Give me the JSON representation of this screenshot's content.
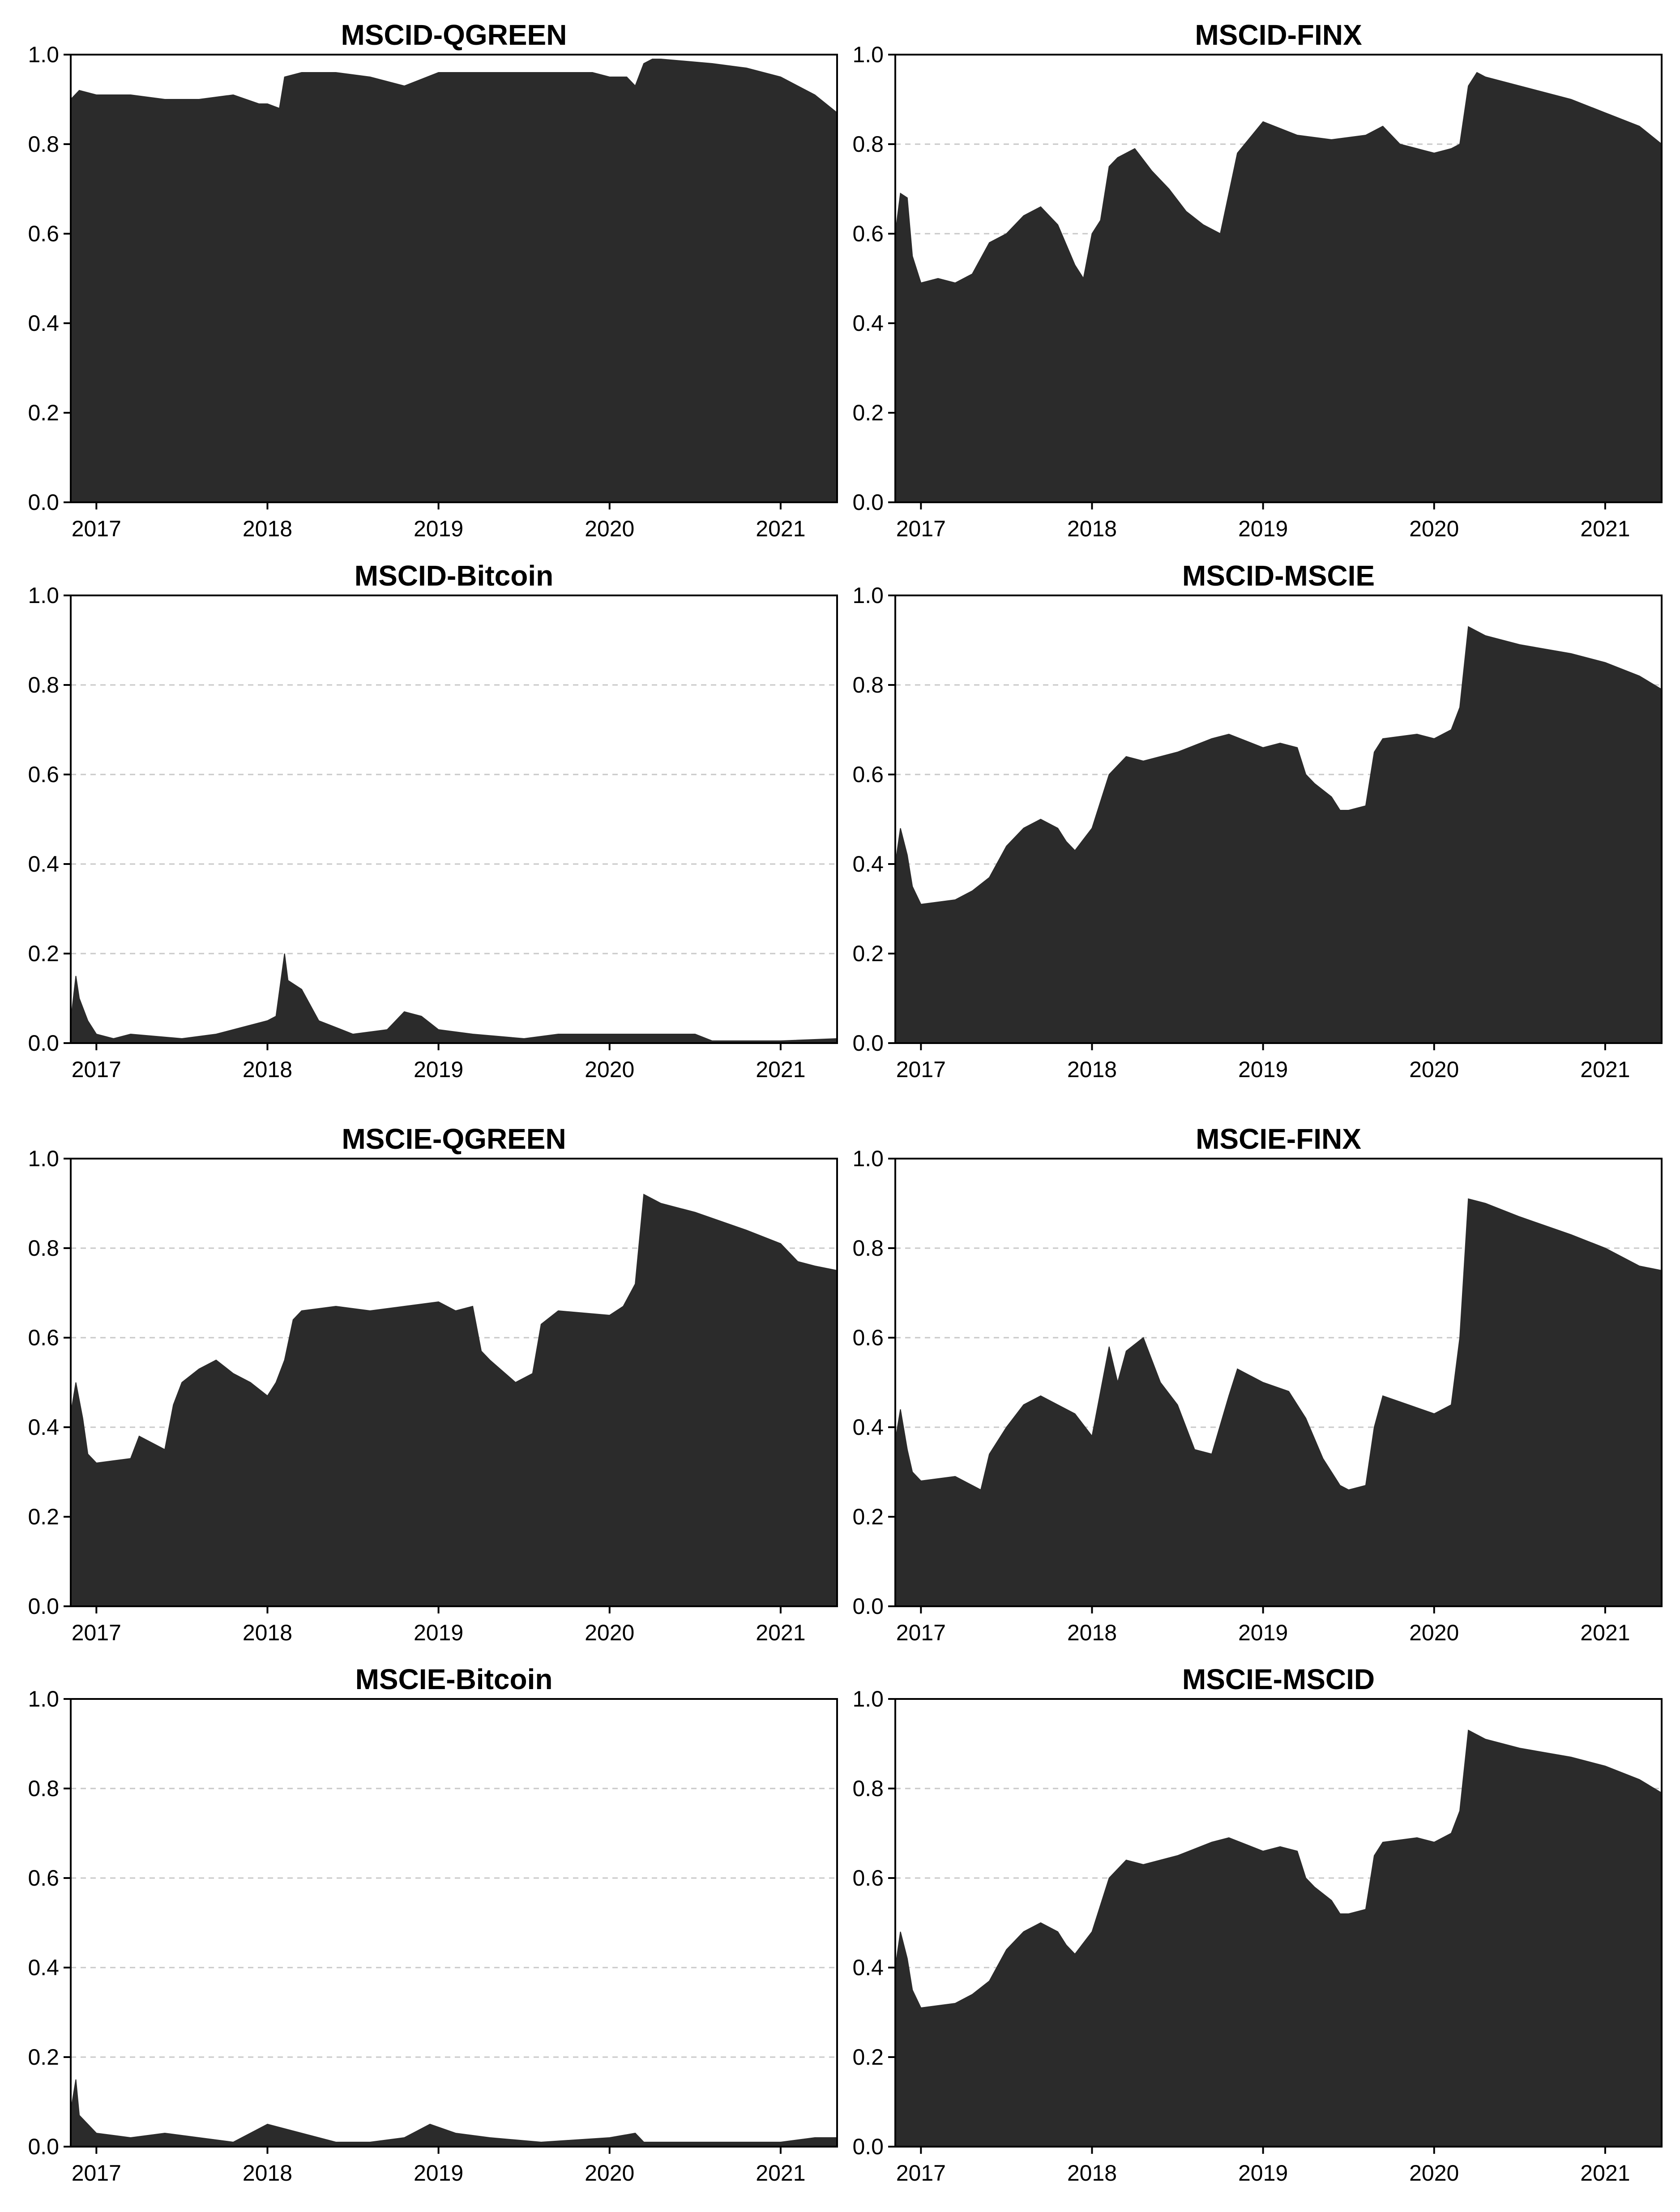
{
  "chart_data": [
    {
      "type": "area",
      "title": "MSCID-QGREEN",
      "ylim": [
        0,
        1
      ],
      "yticks": [
        "0.0",
        "0.2",
        "0.4",
        "0.6",
        "0.8",
        "1.0"
      ],
      "xlim": [
        2016.85,
        2021.33
      ],
      "xticks": [
        "2017",
        "2018",
        "2019",
        "2020",
        "2021"
      ],
      "grid": true,
      "color": "#2b2b2b",
      "x": [
        2016.85,
        2016.9,
        2017.0,
        2017.2,
        2017.4,
        2017.6,
        2017.8,
        2017.95,
        2018.0,
        2018.07,
        2018.1,
        2018.2,
        2018.4,
        2018.6,
        2018.8,
        2019.0,
        2019.3,
        2019.6,
        2019.9,
        2020.0,
        2020.1,
        2020.15,
        2020.2,
        2020.25,
        2020.3,
        2020.6,
        2020.8,
        2021.0,
        2021.2,
        2021.33
      ],
      "y": [
        0.9,
        0.92,
        0.91,
        0.91,
        0.9,
        0.9,
        0.91,
        0.89,
        0.89,
        0.88,
        0.95,
        0.96,
        0.96,
        0.95,
        0.93,
        0.96,
        0.96,
        0.96,
        0.96,
        0.95,
        0.95,
        0.93,
        0.98,
        0.99,
        0.99,
        0.98,
        0.97,
        0.95,
        0.91,
        0.87
      ]
    },
    {
      "type": "area",
      "title": "MSCID-FINX",
      "ylim": [
        0,
        1
      ],
      "yticks": [
        "0.0",
        "0.2",
        "0.4",
        "0.6",
        "0.8",
        "1.0"
      ],
      "xlim": [
        2016.85,
        2021.33
      ],
      "xticks": [
        "2017",
        "2018",
        "2019",
        "2020",
        "2021"
      ],
      "grid": true,
      "color": "#2b2b2b",
      "x": [
        2016.85,
        2016.88,
        2016.92,
        2016.95,
        2017.0,
        2017.1,
        2017.2,
        2017.3,
        2017.4,
        2017.5,
        2017.6,
        2017.7,
        2017.8,
        2017.9,
        2017.95,
        2018.0,
        2018.05,
        2018.1,
        2018.15,
        2018.25,
        2018.35,
        2018.45,
        2018.55,
        2018.65,
        2018.75,
        2018.85,
        2019.0,
        2019.2,
        2019.4,
        2019.6,
        2019.7,
        2019.8,
        2019.9,
        2020.0,
        2020.1,
        2020.15,
        2020.2,
        2020.25,
        2020.3,
        2020.5,
        2020.8,
        2021.0,
        2021.2,
        2021.33
      ],
      "y": [
        0.6,
        0.69,
        0.68,
        0.55,
        0.49,
        0.5,
        0.49,
        0.51,
        0.58,
        0.6,
        0.64,
        0.66,
        0.62,
        0.53,
        0.5,
        0.6,
        0.63,
        0.75,
        0.77,
        0.79,
        0.74,
        0.7,
        0.65,
        0.62,
        0.6,
        0.78,
        0.85,
        0.82,
        0.81,
        0.82,
        0.84,
        0.8,
        0.79,
        0.78,
        0.79,
        0.8,
        0.93,
        0.96,
        0.95,
        0.93,
        0.9,
        0.87,
        0.84,
        0.8
      ]
    },
    {
      "type": "area",
      "title": "MSCID-Bitcoin",
      "ylim": [
        0,
        1
      ],
      "yticks": [
        "0.0",
        "0.2",
        "0.4",
        "0.6",
        "0.8",
        "1.0"
      ],
      "xlim": [
        2016.85,
        2021.33
      ],
      "xticks": [
        "2017",
        "2018",
        "2019",
        "2020",
        "2021"
      ],
      "grid": true,
      "color": "#2b2b2b",
      "x": [
        2016.85,
        2016.88,
        2016.9,
        2016.95,
        2017.0,
        2017.1,
        2017.2,
        2017.5,
        2017.7,
        2017.9,
        2018.0,
        2018.05,
        2018.1,
        2018.12,
        2018.2,
        2018.3,
        2018.5,
        2018.7,
        2018.8,
        2018.9,
        2019.0,
        2019.2,
        2019.5,
        2019.7,
        2020.0,
        2020.3,
        2020.5,
        2020.6,
        2021.0,
        2021.33
      ],
      "y": [
        0.05,
        0.15,
        0.1,
        0.05,
        0.02,
        0.01,
        0.02,
        0.01,
        0.02,
        0.04,
        0.05,
        0.06,
        0.2,
        0.14,
        0.12,
        0.05,
        0.02,
        0.03,
        0.07,
        0.06,
        0.03,
        0.02,
        0.01,
        0.02,
        0.02,
        0.02,
        0.02,
        0.005,
        0.005,
        0.01
      ]
    },
    {
      "type": "area",
      "title": "MSCID-MSCIE",
      "ylim": [
        0,
        1
      ],
      "yticks": [
        "0.0",
        "0.2",
        "0.4",
        "0.6",
        "0.8",
        "1.0"
      ],
      "xlim": [
        2016.85,
        2021.33
      ],
      "xticks": [
        "2017",
        "2018",
        "2019",
        "2020",
        "2021"
      ],
      "grid": true,
      "color": "#2b2b2b",
      "x": [
        2016.85,
        2016.88,
        2016.92,
        2016.95,
        2017.0,
        2017.2,
        2017.3,
        2017.4,
        2017.5,
        2017.6,
        2017.7,
        2017.8,
        2017.85,
        2017.9,
        2018.0,
        2018.1,
        2018.2,
        2018.3,
        2018.5,
        2018.7,
        2018.8,
        2019.0,
        2019.1,
        2019.2,
        2019.25,
        2019.3,
        2019.4,
        2019.45,
        2019.5,
        2019.6,
        2019.65,
        2019.7,
        2019.9,
        2020.0,
        2020.1,
        2020.15,
        2020.2,
        2020.25,
        2020.3,
        2020.5,
        2020.8,
        2021.0,
        2021.2,
        2021.33
      ],
      "y": [
        0.4,
        0.48,
        0.42,
        0.35,
        0.31,
        0.32,
        0.34,
        0.37,
        0.44,
        0.48,
        0.5,
        0.48,
        0.45,
        0.43,
        0.48,
        0.6,
        0.64,
        0.63,
        0.65,
        0.68,
        0.69,
        0.66,
        0.67,
        0.66,
        0.6,
        0.58,
        0.55,
        0.52,
        0.52,
        0.53,
        0.65,
        0.68,
        0.69,
        0.68,
        0.7,
        0.75,
        0.93,
        0.92,
        0.91,
        0.89,
        0.87,
        0.85,
        0.82,
        0.79
      ]
    },
    {
      "type": "area",
      "title": "MSCIE-QGREEN",
      "ylim": [
        0,
        1
      ],
      "yticks": [
        "0.0",
        "0.2",
        "0.4",
        "0.6",
        "0.8",
        "1.0"
      ],
      "xlim": [
        2016.85,
        2021.33
      ],
      "xticks": [
        "2017",
        "2018",
        "2019",
        "2020",
        "2021"
      ],
      "grid": true,
      "color": "#2b2b2b",
      "x": [
        2016.85,
        2016.88,
        2016.92,
        2016.95,
        2017.0,
        2017.2,
        2017.25,
        2017.3,
        2017.4,
        2017.45,
        2017.5,
        2017.6,
        2017.7,
        2017.8,
        2017.9,
        2018.0,
        2018.05,
        2018.1,
        2018.15,
        2018.2,
        2018.4,
        2018.6,
        2018.8,
        2019.0,
        2019.1,
        2019.2,
        2019.25,
        2019.3,
        2019.45,
        2019.55,
        2019.6,
        2019.7,
        2020.0,
        2020.08,
        2020.15,
        2020.2,
        2020.3,
        2020.5,
        2020.8,
        2021.0,
        2021.1,
        2021.2,
        2021.33
      ],
      "y": [
        0.43,
        0.5,
        0.42,
        0.34,
        0.32,
        0.33,
        0.38,
        0.37,
        0.35,
        0.45,
        0.5,
        0.53,
        0.55,
        0.52,
        0.5,
        0.47,
        0.5,
        0.55,
        0.64,
        0.66,
        0.67,
        0.66,
        0.67,
        0.68,
        0.66,
        0.67,
        0.57,
        0.55,
        0.5,
        0.52,
        0.63,
        0.66,
        0.65,
        0.67,
        0.72,
        0.92,
        0.9,
        0.88,
        0.84,
        0.81,
        0.77,
        0.76,
        0.75
      ]
    },
    {
      "type": "area",
      "title": "MSCIE-FINX",
      "ylim": [
        0,
        1
      ],
      "yticks": [
        "0.0",
        "0.2",
        "0.4",
        "0.6",
        "0.8",
        "1.0"
      ],
      "xlim": [
        2016.85,
        2021.33
      ],
      "xticks": [
        "2017",
        "2018",
        "2019",
        "2020",
        "2021"
      ],
      "grid": true,
      "color": "#2b2b2b",
      "x": [
        2016.85,
        2016.88,
        2016.92,
        2016.95,
        2017.0,
        2017.2,
        2017.3,
        2017.35,
        2017.4,
        2017.5,
        2017.6,
        2017.7,
        2017.8,
        2017.9,
        2018.0,
        2018.05,
        2018.1,
        2018.15,
        2018.2,
        2018.3,
        2018.4,
        2018.5,
        2018.6,
        2018.7,
        2018.8,
        2018.85,
        2019.0,
        2019.15,
        2019.25,
        2019.35,
        2019.45,
        2019.5,
        2019.6,
        2019.65,
        2019.7,
        2019.85,
        2020.0,
        2020.1,
        2020.15,
        2020.2,
        2020.3,
        2020.5,
        2020.8,
        2021.0,
        2021.2,
        2021.33
      ],
      "y": [
        0.37,
        0.44,
        0.35,
        0.3,
        0.28,
        0.29,
        0.27,
        0.26,
        0.34,
        0.4,
        0.45,
        0.47,
        0.45,
        0.43,
        0.38,
        0.48,
        0.58,
        0.5,
        0.57,
        0.6,
        0.5,
        0.45,
        0.35,
        0.34,
        0.47,
        0.53,
        0.5,
        0.48,
        0.42,
        0.33,
        0.27,
        0.26,
        0.27,
        0.4,
        0.47,
        0.45,
        0.43,
        0.45,
        0.6,
        0.91,
        0.9,
        0.87,
        0.83,
        0.8,
        0.76,
        0.75
      ]
    },
    {
      "type": "area",
      "title": "MSCIE-Bitcoin",
      "ylim": [
        0,
        1
      ],
      "yticks": [
        "0.0",
        "0.2",
        "0.4",
        "0.6",
        "0.8",
        "1.0"
      ],
      "xlim": [
        2016.85,
        2021.33
      ],
      "xticks": [
        "2017",
        "2018",
        "2019",
        "2020",
        "2021"
      ],
      "grid": true,
      "color": "#2b2b2b",
      "x": [
        2016.85,
        2016.88,
        2016.9,
        2016.95,
        2017.0,
        2017.2,
        2017.4,
        2017.6,
        2017.8,
        2018.0,
        2018.1,
        2018.2,
        2018.4,
        2018.6,
        2018.8,
        2018.95,
        2019.1,
        2019.3,
        2019.6,
        2020.0,
        2020.15,
        2020.2,
        2020.4,
        2020.6,
        2021.0,
        2021.2,
        2021.33
      ],
      "y": [
        0.08,
        0.15,
        0.07,
        0.05,
        0.03,
        0.02,
        0.03,
        0.02,
        0.01,
        0.05,
        0.04,
        0.03,
        0.01,
        0.01,
        0.02,
        0.05,
        0.03,
        0.02,
        0.01,
        0.02,
        0.03,
        0.01,
        0.01,
        0.01,
        0.01,
        0.02,
        0.02
      ]
    },
    {
      "type": "area",
      "title": "MSCIE-MSCID",
      "ylim": [
        0,
        1
      ],
      "yticks": [
        "0.0",
        "0.2",
        "0.4",
        "0.6",
        "0.8",
        "1.0"
      ],
      "xlim": [
        2016.85,
        2021.33
      ],
      "xticks": [
        "2017",
        "2018",
        "2019",
        "2020",
        "2021"
      ],
      "grid": true,
      "color": "#2b2b2b",
      "x": [
        2016.85,
        2016.88,
        2016.92,
        2016.95,
        2017.0,
        2017.2,
        2017.3,
        2017.4,
        2017.5,
        2017.6,
        2017.7,
        2017.8,
        2017.85,
        2017.9,
        2018.0,
        2018.1,
        2018.2,
        2018.3,
        2018.5,
        2018.7,
        2018.8,
        2019.0,
        2019.1,
        2019.2,
        2019.25,
        2019.3,
        2019.4,
        2019.45,
        2019.5,
        2019.6,
        2019.65,
        2019.7,
        2019.9,
        2020.0,
        2020.1,
        2020.15,
        2020.2,
        2020.25,
        2020.3,
        2020.5,
        2020.8,
        2021.0,
        2021.2,
        2021.33
      ],
      "y": [
        0.4,
        0.48,
        0.42,
        0.35,
        0.31,
        0.32,
        0.34,
        0.37,
        0.44,
        0.48,
        0.5,
        0.48,
        0.45,
        0.43,
        0.48,
        0.6,
        0.64,
        0.63,
        0.65,
        0.68,
        0.69,
        0.66,
        0.67,
        0.66,
        0.6,
        0.58,
        0.55,
        0.52,
        0.52,
        0.53,
        0.65,
        0.68,
        0.69,
        0.68,
        0.7,
        0.75,
        0.93,
        0.92,
        0.91,
        0.89,
        0.87,
        0.85,
        0.82,
        0.79
      ]
    }
  ]
}
